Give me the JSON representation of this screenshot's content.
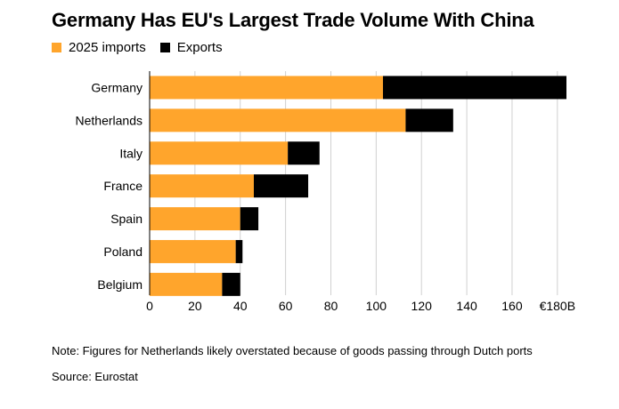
{
  "chart_data": {
    "type": "bar",
    "orientation": "horizontal",
    "stacked": true,
    "title": "Germany Has EU's Largest Trade Volume With China",
    "categories": [
      "Germany",
      "Netherlands",
      "Italy",
      "France",
      "Spain",
      "Poland",
      "Belgium"
    ],
    "series": [
      {
        "name": "2025 imports",
        "color": "#FFA52C",
        "values": [
          103,
          113,
          61,
          46,
          40,
          38,
          32
        ]
      },
      {
        "name": "Exports",
        "color": "#000000",
        "values": [
          81,
          21,
          14,
          24,
          8,
          3,
          8
        ]
      }
    ],
    "xlim": [
      0,
      184
    ],
    "xticks": [
      0,
      20,
      40,
      60,
      80,
      100,
      120,
      140,
      160,
      180
    ],
    "xtick_labels": [
      "0",
      "20",
      "40",
      "60",
      "80",
      "100",
      "120",
      "140",
      "160",
      "€180B"
    ],
    "grid": true,
    "legend_position": "top-left"
  },
  "note": "Note: Figures for Netherlands likely overstated because of goods passing through Dutch ports",
  "source": "Source: Eurostat"
}
